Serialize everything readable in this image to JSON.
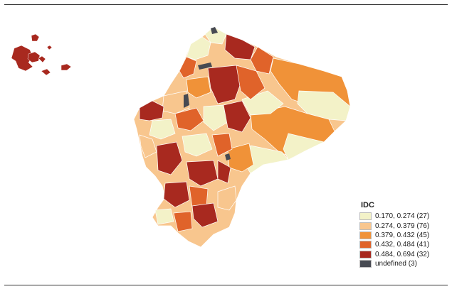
{
  "legend": {
    "title": "IDC",
    "items": [
      {
        "label": "0.170, 0.274 (27)",
        "color": "#f3f2c8"
      },
      {
        "label": "0.274, 0.379 (76)",
        "color": "#f8c68e"
      },
      {
        "label": "0.379, 0.432 (45)",
        "color": "#f09238"
      },
      {
        "label": "0.432, 0.484 (41)",
        "color": "#e0632a"
      },
      {
        "label": "0.484, 0.694 (32)",
        "color": "#a8291f"
      },
      {
        "label": "undefined (3)",
        "color": "#474a52"
      }
    ]
  }
}
